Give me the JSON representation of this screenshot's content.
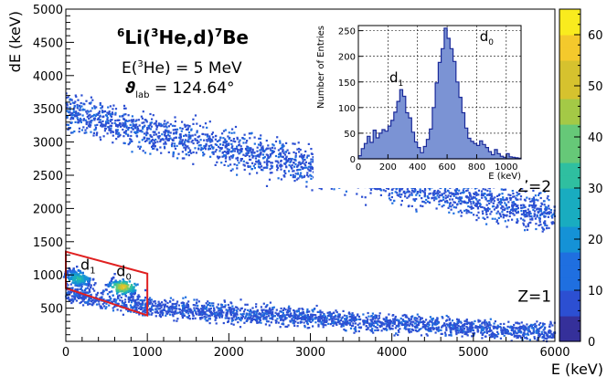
{
  "chart_data": {
    "type": "heatmap",
    "title": "",
    "xlabel": "E (keV)",
    "ylabel": "dE (keV)",
    "xlim": [
      0,
      6000
    ],
    "ylim": [
      0,
      5000
    ],
    "x_ticks": [
      "0",
      "1000",
      "2000",
      "3000",
      "4000",
      "5000",
      "6000"
    ],
    "y_ticks": [
      "500",
      "1000",
      "1500",
      "2000",
      "2500",
      "3000",
      "3500",
      "4000",
      "4500",
      "5000"
    ],
    "colorbar": {
      "range": [
        0,
        65
      ],
      "ticks": [
        "0",
        "10",
        "20",
        "30",
        "40",
        "50",
        "60"
      ],
      "colors": [
        "#35309a",
        "#2c4fd2",
        "#1f6fe0",
        "#1592d6",
        "#19acc0",
        "#2fbfa0",
        "#66c878",
        "#a4c946",
        "#d6c22e",
        "#f4c92c",
        "#f9eb1e"
      ]
    },
    "reaction_label": {
      "prefix_mass": "6",
      "li": "Li(",
      "he_mass": "3",
      "he": "He,d)",
      "be_mass": "7",
      "be": "Be"
    },
    "energy_line": {
      "pre": "E(",
      "mass": "3",
      "post": "He) = 5 MeV"
    },
    "angle_line": {
      "symbol": "ϑ",
      "subscript": "lab",
      "post": " = 124.64°"
    },
    "bands": [
      {
        "label": "Z=2",
        "points": [
          [
            0,
            3500
          ],
          [
            500,
            3300
          ],
          [
            1000,
            3150
          ],
          [
            2000,
            2900
          ],
          [
            3000,
            2650
          ],
          [
            4000,
            2400
          ],
          [
            5000,
            2150
          ],
          [
            6000,
            1900
          ]
        ],
        "spread": 140
      },
      {
        "label": "Z=1",
        "points": [
          [
            0,
            750
          ],
          [
            500,
            600
          ],
          [
            1000,
            520
          ],
          [
            2000,
            430
          ],
          [
            3000,
            360
          ],
          [
            4000,
            270
          ],
          [
            5000,
            200
          ],
          [
            6000,
            130
          ]
        ],
        "spread": 70
      }
    ],
    "band_labels": [
      {
        "text": "Z=2",
        "x": 5750,
        "y": 2250
      },
      {
        "text": "Z=1",
        "x": 5750,
        "y": 600
      }
    ],
    "selection_region": {
      "corners": [
        [
          0,
          1350
        ],
        [
          1000,
          1020
        ],
        [
          1000,
          390
        ],
        [
          0,
          800
        ]
      ],
      "color": "#e02020"
    },
    "peak_labels": [
      {
        "text": "d",
        "sub": "1",
        "x": 180,
        "y": 1080
      },
      {
        "text": "d",
        "sub": "0",
        "x": 620,
        "y": 980
      }
    ],
    "hotspots": [
      {
        "x": 700,
        "y": 820,
        "level": 60
      },
      {
        "x": 150,
        "y": 950,
        "level": 30
      }
    ],
    "inset": {
      "type": "histogram",
      "xlabel": "E (keV)",
      "ylabel": "Number of Entries",
      "xlim": [
        0,
        1100
      ],
      "ylim": [
        0,
        260
      ],
      "x_ticks": [
        "0",
        "200",
        "400",
        "600",
        "800",
        "1000"
      ],
      "y_ticks": [
        "0",
        "50",
        "100",
        "150",
        "200",
        "250"
      ],
      "fill_color": "#7b93d4",
      "line_color": "#1a2a9a",
      "bin_width": 20,
      "counts": [
        6,
        20,
        30,
        44,
        32,
        56,
        41,
        50,
        57,
        54,
        64,
        75,
        91,
        112,
        135,
        122,
        90,
        80,
        52,
        33,
        22,
        12,
        24,
        38,
        58,
        100,
        148,
        188,
        215,
        255,
        235,
        215,
        190,
        150,
        120,
        90,
        60,
        40,
        34,
        30,
        26,
        35,
        28,
        22,
        14,
        8,
        18,
        10,
        5,
        3,
        10,
        4,
        3,
        2,
        1
      ],
      "peak_labels": [
        {
          "text": "d",
          "sub": "1",
          "x": 210,
          "y": 150
        },
        {
          "text": "d",
          "sub": "0",
          "x": 820,
          "y": 230
        }
      ]
    }
  }
}
